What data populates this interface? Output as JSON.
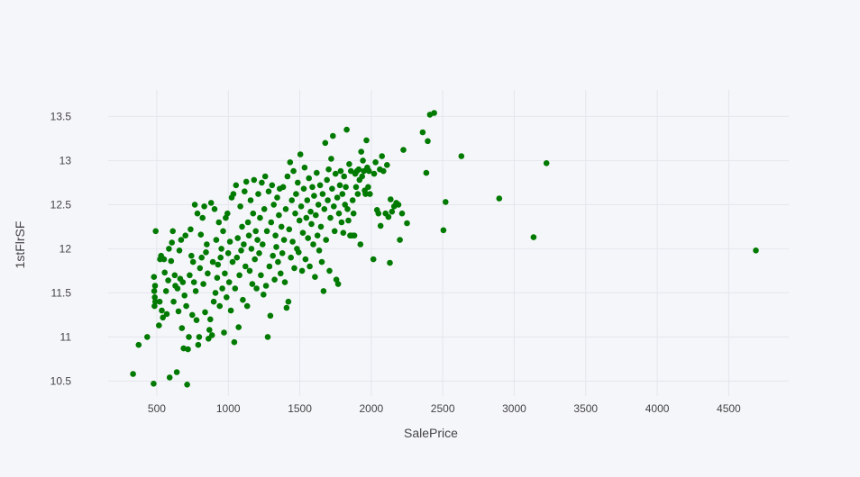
{
  "chart_data": {
    "type": "scatter",
    "title": "",
    "xlabel": "SalePrice",
    "ylabel": "1stFlrSF",
    "xlim": [
      160,
      4920
    ],
    "ylim": [
      10.33,
      13.8
    ],
    "x_ticks": [
      500,
      1000,
      1500,
      2000,
      2500,
      3000,
      3500,
      4000,
      4500
    ],
    "x_tick_labels": [
      "500",
      "1000",
      "1500",
      "2000",
      "2500",
      "3000",
      "3500",
      "4000",
      "4500"
    ],
    "y_ticks": [
      10.5,
      11,
      11.5,
      12,
      12.5,
      13,
      13.5
    ],
    "y_tick_labels": [
      "10.5",
      "11",
      "11.5",
      "12",
      "12.5",
      "13",
      "13.5"
    ],
    "grid": true,
    "legend": "none",
    "marker_color": "#007a00",
    "series": [
      {
        "points": [
          [
            334,
            10.58
          ],
          [
            373,
            10.91
          ],
          [
            433,
            11.0
          ],
          [
            478,
            10.47
          ],
          [
            480,
            11.68
          ],
          [
            482,
            11.52
          ],
          [
            484,
            11.35
          ],
          [
            486,
            11.45
          ],
          [
            488,
            11.58
          ],
          [
            490,
            11.4
          ],
          [
            492,
            12.2
          ],
          [
            515,
            11.13
          ],
          [
            520,
            11.4
          ],
          [
            523,
            11.88
          ],
          [
            530,
            11.92
          ],
          [
            535,
            11.3
          ],
          [
            543,
            11.22
          ],
          [
            550,
            11.88
          ],
          [
            555,
            11.73
          ],
          [
            565,
            11.52
          ],
          [
            570,
            11.26
          ],
          [
            580,
            11.64
          ],
          [
            585,
            12.0
          ],
          [
            590,
            10.54
          ],
          [
            600,
            11.86
          ],
          [
            606,
            12.07
          ],
          [
            612,
            12.2
          ],
          [
            618,
            11.4
          ],
          [
            625,
            11.7
          ],
          [
            630,
            11.58
          ],
          [
            640,
            10.6
          ],
          [
            645,
            11.55
          ],
          [
            652,
            11.29
          ],
          [
            658,
            11.98
          ],
          [
            664,
            11.66
          ],
          [
            670,
            12.1
          ],
          [
            676,
            11.1
          ],
          [
            682,
            11.62
          ],
          [
            688,
            10.87
          ],
          [
            694,
            11.47
          ],
          [
            700,
            12.15
          ],
          [
            706,
            11.35
          ],
          [
            712,
            10.46
          ],
          [
            718,
            10.86
          ],
          [
            724,
            11.0
          ],
          [
            730,
            11.7
          ],
          [
            736,
            12.22
          ],
          [
            742,
            11.92
          ],
          [
            748,
            11.25
          ],
          [
            754,
            11.85
          ],
          [
            760,
            11.62
          ],
          [
            766,
            12.5
          ],
          [
            772,
            11.52
          ],
          [
            778,
            11.19
          ],
          [
            784,
            12.4
          ],
          [
            790,
            10.91
          ],
          [
            796,
            11.0
          ],
          [
            802,
            11.78
          ],
          [
            808,
            12.16
          ],
          [
            814,
            11.9
          ],
          [
            820,
            12.35
          ],
          [
            826,
            11.6
          ],
          [
            832,
            12.48
          ],
          [
            838,
            11.28
          ],
          [
            844,
            11.96
          ],
          [
            850,
            12.05
          ],
          [
            856,
            11.72
          ],
          [
            862,
            10.98
          ],
          [
            868,
            11.08
          ],
          [
            874,
            11.2
          ],
          [
            880,
            12.52
          ],
          [
            886,
            11.02
          ],
          [
            892,
            11.85
          ],
          [
            898,
            11.4
          ],
          [
            904,
            12.45
          ],
          [
            910,
            11.5
          ],
          [
            916,
            12.1
          ],
          [
            922,
            11.67
          ],
          [
            928,
            11.82
          ],
          [
            934,
            12.3
          ],
          [
            940,
            11.35
          ],
          [
            946,
            11.9
          ],
          [
            952,
            12.0
          ],
          [
            958,
            11.55
          ],
          [
            964,
            12.2
          ],
          [
            970,
            11.05
          ],
          [
            976,
            11.72
          ],
          [
            982,
            12.35
          ],
          [
            988,
            11.45
          ],
          [
            994,
            12.4
          ],
          [
            1000,
            11.95
          ],
          [
            1006,
            11.62
          ],
          [
            1012,
            12.08
          ],
          [
            1018,
            11.3
          ],
          [
            1024,
            12.58
          ],
          [
            1030,
            11.85
          ],
          [
            1036,
            12.62
          ],
          [
            1042,
            10.94
          ],
          [
            1048,
            11.55
          ],
          [
            1054,
            12.72
          ],
          [
            1060,
            11.9
          ],
          [
            1066,
            12.12
          ],
          [
            1072,
            11.11
          ],
          [
            1078,
            11.7
          ],
          [
            1084,
            12.48
          ],
          [
            1090,
            11.98
          ],
          [
            1096,
            12.25
          ],
          [
            1102,
            11.42
          ],
          [
            1108,
            12.05
          ],
          [
            1114,
            12.65
          ],
          [
            1120,
            11.8
          ],
          [
            1126,
            12.76
          ],
          [
            1132,
            11.35
          ],
          [
            1138,
            12.3
          ],
          [
            1144,
            12.15
          ],
          [
            1150,
            11.75
          ],
          [
            1156,
            12.55
          ],
          [
            1162,
            12.0
          ],
          [
            1168,
            11.6
          ],
          [
            1174,
            12.4
          ],
          [
            1180,
            12.78
          ],
          [
            1186,
            11.88
          ],
          [
            1192,
            12.2
          ],
          [
            1198,
            11.55
          ],
          [
            1204,
            12.1
          ],
          [
            1210,
            12.62
          ],
          [
            1216,
            11.95
          ],
          [
            1222,
            12.35
          ],
          [
            1228,
            11.7
          ],
          [
            1234,
            12.75
          ],
          [
            1240,
            12.05
          ],
          [
            1246,
            11.48
          ],
          [
            1252,
            12.45
          ],
          [
            1258,
            12.82
          ],
          [
            1264,
            11.58
          ],
          [
            1270,
            12.2
          ],
          [
            1276,
            11.0
          ],
          [
            1282,
            12.65
          ],
          [
            1288,
            11.8
          ],
          [
            1294,
            11.24
          ],
          [
            1300,
            12.3
          ],
          [
            1306,
            12.72
          ],
          [
            1312,
            11.92
          ],
          [
            1318,
            12.5
          ],
          [
            1324,
            11.65
          ],
          [
            1330,
            12.15
          ],
          [
            1336,
            12.02
          ],
          [
            1342,
            12.58
          ],
          [
            1348,
            11.85
          ],
          [
            1354,
            12.38
          ],
          [
            1360,
            12.68
          ],
          [
            1366,
            11.72
          ],
          [
            1372,
            12.25
          ],
          [
            1378,
            11.95
          ],
          [
            1384,
            12.7
          ],
          [
            1390,
            12.1
          ],
          [
            1396,
            11.62
          ],
          [
            1402,
            12.45
          ],
          [
            1408,
            11.33
          ],
          [
            1414,
            12.82
          ],
          [
            1420,
            11.4
          ],
          [
            1426,
            12.22
          ],
          [
            1432,
            12.98
          ],
          [
            1438,
            11.9
          ],
          [
            1444,
            12.55
          ],
          [
            1450,
            12.08
          ],
          [
            1456,
            12.88
          ],
          [
            1462,
            11.78
          ],
          [
            1468,
            12.4
          ],
          [
            1474,
            12.62
          ],
          [
            1480,
            12.0
          ],
          [
            1486,
            12.75
          ],
          [
            1492,
            11.96
          ],
          [
            1498,
            12.32
          ],
          [
            1504,
            13.07
          ],
          [
            1510,
            12.48
          ],
          [
            1516,
            11.75
          ],
          [
            1522,
            12.18
          ],
          [
            1528,
            12.68
          ],
          [
            1534,
            12.92
          ],
          [
            1540,
            11.88
          ],
          [
            1546,
            12.35
          ],
          [
            1552,
            12.55
          ],
          [
            1558,
            12.12
          ],
          [
            1564,
            12.8
          ],
          [
            1570,
            11.8
          ],
          [
            1576,
            12.42
          ],
          [
            1582,
            12.28
          ],
          [
            1588,
            12.7
          ],
          [
            1594,
            12.05
          ],
          [
            1600,
            12.6
          ],
          [
            1606,
            11.68
          ],
          [
            1612,
            12.38
          ],
          [
            1618,
            12.86
          ],
          [
            1624,
            12.15
          ],
          [
            1630,
            12.5
          ],
          [
            1636,
            11.98
          ],
          [
            1642,
            12.72
          ],
          [
            1648,
            12.25
          ],
          [
            1654,
            11.85
          ],
          [
            1660,
            12.62
          ],
          [
            1666,
            11.52
          ],
          [
            1672,
            12.45
          ],
          [
            1678,
            13.2
          ],
          [
            1684,
            12.1
          ],
          [
            1690,
            12.78
          ],
          [
            1696,
            12.55
          ],
          [
            1702,
            12.9
          ],
          [
            1708,
            11.75
          ],
          [
            1714,
            12.35
          ],
          [
            1720,
            13.02
          ],
          [
            1726,
            12.68
          ],
          [
            1732,
            13.28
          ],
          [
            1738,
            12.48
          ],
          [
            1744,
            12.2
          ],
          [
            1750,
            12.85
          ],
          [
            1756,
            11.65
          ],
          [
            1762,
            12.58
          ],
          [
            1768,
            11.6
          ],
          [
            1774,
            12.4
          ],
          [
            1780,
            12.72
          ],
          [
            1786,
            12.88
          ],
          [
            1792,
            12.3
          ],
          [
            1798,
            12.62
          ],
          [
            1804,
            12.18
          ],
          [
            1810,
            12.82
          ],
          [
            1816,
            12.5
          ],
          [
            1822,
            12.7
          ],
          [
            1828,
            13.35
          ],
          [
            1834,
            12.45
          ],
          [
            1840,
            12.32
          ],
          [
            1846,
            12.96
          ],
          [
            1852,
            12.15
          ],
          [
            1858,
            12.88
          ],
          [
            1864,
            12.15
          ],
          [
            1870,
            12.55
          ],
          [
            1876,
            12.4
          ],
          [
            1882,
            12.15
          ],
          [
            1888,
            12.85
          ],
          [
            1894,
            12.7
          ],
          [
            1900,
            12.88
          ],
          [
            1906,
            12.62
          ],
          [
            1912,
            12.9
          ],
          [
            1918,
            12.78
          ],
          [
            1924,
            12.05
          ],
          [
            1930,
            13.1
          ],
          [
            1936,
            12.82
          ],
          [
            1942,
            13.0
          ],
          [
            1948,
            12.88
          ],
          [
            1954,
            12.66
          ],
          [
            1960,
            12.62
          ],
          [
            1966,
            13.23
          ],
          [
            1972,
            12.92
          ],
          [
            1978,
            12.7
          ],
          [
            1984,
            12.88
          ],
          [
            1990,
            12.62
          ],
          [
            2015,
            11.88
          ],
          [
            2020,
            12.85
          ],
          [
            2030,
            12.98
          ],
          [
            2040,
            12.44
          ],
          [
            2050,
            12.4
          ],
          [
            2060,
            12.9
          ],
          [
            2065,
            12.26
          ],
          [
            2075,
            13.05
          ],
          [
            2085,
            12.88
          ],
          [
            2100,
            12.4
          ],
          [
            2110,
            12.95
          ],
          [
            2120,
            12.36
          ],
          [
            2130,
            11.84
          ],
          [
            2135,
            12.56
          ],
          [
            2145,
            12.42
          ],
          [
            2160,
            12.48
          ],
          [
            2175,
            12.52
          ],
          [
            2190,
            12.5
          ],
          [
            2200,
            12.1
          ],
          [
            2215,
            12.4
          ],
          [
            2225,
            13.12
          ],
          [
            2250,
            12.29
          ],
          [
            2360,
            13.32
          ],
          [
            2385,
            12.86
          ],
          [
            2395,
            13.22
          ],
          [
            2410,
            13.52
          ],
          [
            2440,
            13.54
          ],
          [
            2505,
            12.21
          ],
          [
            2520,
            12.53
          ],
          [
            2630,
            13.05
          ],
          [
            2895,
            12.57
          ],
          [
            3135,
            12.13
          ],
          [
            3225,
            12.97
          ],
          [
            4690,
            11.98
          ]
        ]
      }
    ]
  }
}
